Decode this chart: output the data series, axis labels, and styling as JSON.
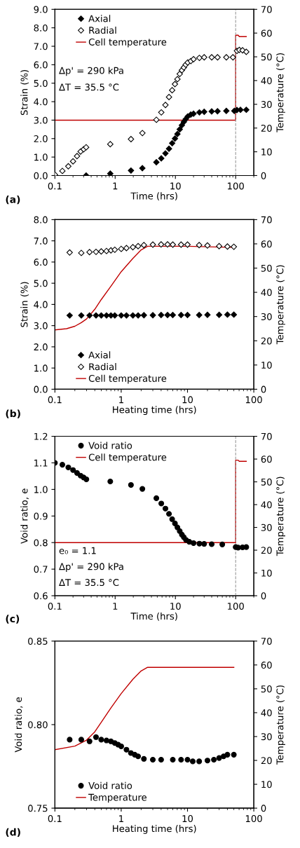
{
  "chart_data": [
    {
      "type": "scatter",
      "log": "x",
      "xlabel": "Time (hrs)",
      "ylabel": "Strain (%)",
      "y2label": "Temperature (°C)",
      "xlim": [
        0.1,
        200
      ],
      "xticks": [
        0.1,
        1,
        10,
        100
      ],
      "ylim": [
        0,
        9
      ],
      "yticks": [
        {
          "value": 0,
          "label": "0.0"
        },
        {
          "value": 1,
          "label": "1.0"
        },
        {
          "value": 2,
          "label": "2.0"
        },
        {
          "value": 3,
          "label": "3.0"
        },
        {
          "value": 4,
          "label": "4.0"
        },
        {
          "value": 5,
          "label": "5.0"
        },
        {
          "value": 6,
          "label": "6.0"
        },
        {
          "value": 7,
          "label": "7.0"
        },
        {
          "value": 8,
          "label": "8.0"
        },
        {
          "value": 9,
          "label": "9.0"
        }
      ],
      "y2lim": [
        0,
        70
      ],
      "y2ticks": [
        0,
        10,
        20,
        30,
        40,
        50,
        60,
        70
      ],
      "legend": "top left",
      "grid": false,
      "annotations": [
        "(a)",
        {
          "text": "Δp' = 290 kPa"
        },
        {
          "text": "ΔT = 35.5 °C"
        }
      ],
      "ref_lines": [
        {
          "axis": "x",
          "value": 100,
          "color": "#999999",
          "line_style": "dashed"
        }
      ],
      "series": [
        {
          "name": "Axial",
          "marker": "diamond",
          "color": "#000000",
          "x": [
            0.33,
            0.83,
            1.83,
            2.83,
            4.83,
            5.83,
            6.83,
            7.83,
            8.83,
            9.83,
            10.8,
            11.8,
            12.8,
            13.8,
            14.8,
            16,
            18,
            20,
            25,
            30,
            40,
            50,
            70,
            95,
            105,
            120,
            150
          ],
          "values": [
            0.0,
            0.1,
            0.27,
            0.4,
            0.72,
            0.93,
            1.2,
            1.45,
            1.75,
            2.0,
            2.25,
            2.5,
            2.72,
            2.9,
            3.05,
            3.2,
            3.3,
            3.35,
            3.42,
            3.45,
            3.47,
            3.48,
            3.5,
            3.5,
            3.55,
            3.56,
            3.56
          ]
        },
        {
          "name": "Radial",
          "marker": "diamond",
          "color": "#ffffff",
          "x": [
            0.1,
            0.133,
            0.167,
            0.2,
            0.233,
            0.267,
            0.3,
            0.33,
            0.83,
            1.83,
            2.83,
            4.83,
            5.83,
            6.83,
            7.83,
            8.83,
            9.83,
            10.8,
            11.8,
            12.8,
            13.8,
            14.8,
            16,
            18,
            20,
            25,
            30,
            40,
            50,
            70,
            90,
            105,
            115,
            130,
            150
          ],
          "values": [
            0.05,
            0.25,
            0.5,
            0.77,
            1.05,
            1.3,
            1.42,
            1.53,
            1.7,
            1.97,
            2.3,
            3.02,
            3.42,
            3.82,
            4.25,
            4.62,
            4.95,
            5.22,
            5.5,
            5.7,
            5.85,
            6.0,
            6.12,
            6.2,
            6.3,
            6.37,
            6.4,
            6.4,
            6.4,
            6.4,
            6.4,
            6.75,
            6.8,
            6.78,
            6.7
          ]
        },
        {
          "name": "Cell temperature",
          "type": "line",
          "axis": "y2",
          "color": "#c00000",
          "x": [
            0.1,
            100,
            100,
            110,
            115,
            150
          ],
          "values": [
            23.3,
            23.3,
            59.1,
            59.1,
            58.5,
            58.5
          ]
        }
      ]
    },
    {
      "type": "scatter",
      "log": "x",
      "xlabel": "Heating time (hrs)",
      "ylabel": "Strain (%)",
      "y2label": "Temperature (°C)",
      "xlim": [
        0.1,
        100
      ],
      "xticks": [
        0.1,
        1,
        10,
        100
      ],
      "ylim": [
        0,
        8
      ],
      "yticks": [
        {
          "value": 0,
          "label": "0.0"
        },
        {
          "value": 1,
          "label": "1.0"
        },
        {
          "value": 2,
          "label": "2.0"
        },
        {
          "value": 3,
          "label": "3.0"
        },
        {
          "value": 4,
          "label": "4.0"
        },
        {
          "value": 5,
          "label": "5.0"
        },
        {
          "value": 6,
          "label": "6.0"
        },
        {
          "value": 7,
          "label": "7.0"
        },
        {
          "value": 8,
          "label": "8.0"
        }
      ],
      "y2lim": [
        0,
        70
      ],
      "y2ticks": [
        0,
        10,
        20,
        30,
        40,
        50,
        60,
        70
      ],
      "legend": "bottom left",
      "grid": false,
      "annotations": [
        "(b)"
      ],
      "series": [
        {
          "name": "Axial",
          "marker": "diamond",
          "color": "#000000",
          "x": [
            0.167,
            0.25,
            0.333,
            0.417,
            0.5,
            0.6,
            0.7,
            0.8,
            1,
            1.2,
            1.5,
            1.8,
            2.2,
            3,
            4,
            5,
            6,
            8,
            10,
            15,
            20,
            30,
            40,
            50
          ],
          "values": [
            3.48,
            3.48,
            3.48,
            3.48,
            3.48,
            3.48,
            3.48,
            3.48,
            3.48,
            3.48,
            3.48,
            3.48,
            3.49,
            3.49,
            3.5,
            3.5,
            3.5,
            3.5,
            3.5,
            3.5,
            3.51,
            3.51,
            3.52,
            3.52
          ]
        },
        {
          "name": "Radial",
          "marker": "diamond",
          "color": "#ffffff",
          "x": [
            0.167,
            0.25,
            0.333,
            0.417,
            0.5,
            0.6,
            0.7,
            0.8,
            1,
            1.2,
            1.5,
            1.8,
            2.2,
            3,
            4,
            5,
            6,
            8,
            10,
            15,
            20,
            30,
            40,
            50
          ],
          "values": [
            6.45,
            6.43,
            6.47,
            6.48,
            6.5,
            6.52,
            6.55,
            6.58,
            6.62,
            6.66,
            6.7,
            6.75,
            6.8,
            6.82,
            6.83,
            6.83,
            6.82,
            6.82,
            6.82,
            6.8,
            6.78,
            6.75,
            6.73,
            6.72
          ]
        },
        {
          "name": "Cell temperature",
          "type": "line",
          "axis": "y2",
          "color": "#c00000",
          "x": [
            0.1,
            0.15,
            0.2,
            0.25,
            0.3,
            0.4,
            0.5,
            0.7,
            1,
            1.5,
            2,
            2.5,
            5,
            10,
            20,
            50
          ],
          "values": [
            24.5,
            25,
            26,
            27.5,
            29,
            33,
            37,
            42.5,
            48.5,
            54,
            57.5,
            59,
            59,
            59,
            58.8,
            58.5
          ]
        }
      ]
    },
    {
      "type": "scatter",
      "log": "x",
      "xlabel": "Time (hrs)",
      "ylabel": "Void ratio, e",
      "y2label": "Temperature (°C)",
      "xlim": [
        0.1,
        200
      ],
      "xticks": [
        0.1,
        1,
        10,
        100
      ],
      "ylim": [
        0.6,
        1.2
      ],
      "yticks": [
        {
          "value": 0.6,
          "label": "0.6"
        },
        {
          "value": 0.7,
          "label": "0.7"
        },
        {
          "value": 0.8,
          "label": "0.8"
        },
        {
          "value": 0.9,
          "label": "0.9"
        },
        {
          "value": 1.0,
          "label": "1.0"
        },
        {
          "value": 1.1,
          "label": "1.1"
        },
        {
          "value": 1.2,
          "label": "1.2"
        }
      ],
      "y2lim": [
        0,
        70
      ],
      "y2ticks": [
        0,
        10,
        20,
        30,
        40,
        50,
        60,
        70
      ],
      "legend": "top left",
      "grid": false,
      "annotations": [
        "(c)",
        {
          "text": "e₀ = 1.1"
        },
        {
          "text": "Δp' = 290 kPa"
        },
        {
          "text": "ΔT = 35.5 °C"
        }
      ],
      "ref_lines": [
        {
          "axis": "x",
          "value": 100,
          "color": "#999999",
          "line_style": "dashed"
        }
      ],
      "series": [
        {
          "name": "Void ratio",
          "marker": "circle",
          "color": "#000000",
          "x": [
            0.1,
            0.133,
            0.167,
            0.2,
            0.233,
            0.267,
            0.3,
            0.333,
            0.83,
            1.83,
            2.83,
            4.83,
            5.83,
            6.83,
            7.83,
            8.83,
            9.83,
            10.8,
            11.8,
            12.8,
            13.8,
            15,
            17,
            20,
            25,
            30,
            40,
            60,
            100,
            110,
            130,
            150
          ],
          "values": [
            1.1,
            1.093,
            1.083,
            1.073,
            1.062,
            1.052,
            1.045,
            1.038,
            1.03,
            1.017,
            1.002,
            0.967,
            0.947,
            0.928,
            0.908,
            0.888,
            0.872,
            0.857,
            0.843,
            0.83,
            0.82,
            0.81,
            0.803,
            0.798,
            0.796,
            0.795,
            0.794,
            0.793,
            0.783,
            0.781,
            0.782,
            0.783
          ]
        },
        {
          "name": "Cell temperature",
          "type": "line",
          "axis": "y2",
          "color": "#c00000",
          "x": [
            0.1,
            100,
            100,
            110,
            115,
            150
          ],
          "values": [
            23.3,
            23.3,
            59.5,
            59.5,
            59,
            59
          ]
        }
      ]
    },
    {
      "type": "scatter",
      "log": "x",
      "xlabel": "Heating time (hrs)",
      "ylabel": "Void ratio, e",
      "y2label": "Temperature (°C)",
      "xlim": [
        0.1,
        100
      ],
      "xticks": [
        0.1,
        1,
        10,
        100
      ],
      "ylim": [
        0.75,
        0.85
      ],
      "yticks": [
        {
          "value": 0.75,
          "label": "0.75"
        },
        {
          "value": 0.8,
          "label": "0.80"
        },
        {
          "value": 0.85,
          "label": "0.85"
        }
      ],
      "y2lim": [
        0,
        70
      ],
      "y2ticks": [
        0,
        10,
        20,
        30,
        40,
        50,
        60,
        70
      ],
      "legend": "bottom left",
      "grid": false,
      "annotations": [
        "(d)"
      ],
      "series": [
        {
          "name": "Void ratio",
          "marker": "circle",
          "color": "#000000",
          "x": [
            0.167,
            0.25,
            0.333,
            0.417,
            0.5,
            0.6,
            0.7,
            0.8,
            0.9,
            1,
            1.2,
            1.4,
            1.6,
            1.8,
            2.2,
            3,
            4,
            6,
            8,
            10,
            12,
            15,
            20,
            25,
            30,
            35,
            40,
            50
          ],
          "values": [
            0.791,
            0.791,
            0.79,
            0.7925,
            0.791,
            0.7905,
            0.79,
            0.789,
            0.788,
            0.787,
            0.785,
            0.783,
            0.782,
            0.781,
            0.7795,
            0.779,
            0.779,
            0.779,
            0.779,
            0.779,
            0.778,
            0.778,
            0.7785,
            0.779,
            0.78,
            0.781,
            0.782,
            0.782
          ]
        },
        {
          "name": "Temperature",
          "type": "line",
          "axis": "y2",
          "color": "#c00000",
          "x": [
            0.1,
            0.2,
            0.3,
            0.4,
            0.5,
            0.7,
            1,
            1.5,
            2,
            2.5,
            10,
            50
          ],
          "values": [
            24.5,
            26,
            28.5,
            32,
            36,
            42,
            48,
            54,
            57.5,
            59,
            59,
            59
          ]
        }
      ]
    }
  ]
}
